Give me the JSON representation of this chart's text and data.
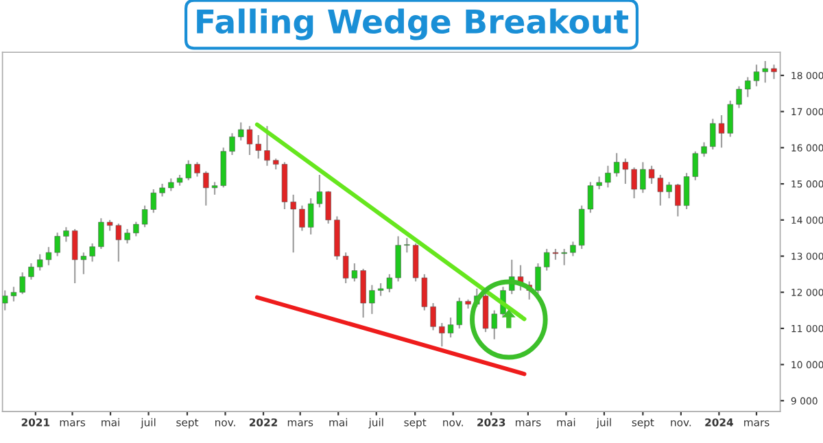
{
  "chart_data": {
    "type": "candlestick",
    "title": "Falling Wedge Breakout",
    "x": [
      "2020-11-13",
      "2020-11-27",
      "2020-12-11",
      "2020-12-25",
      "2021-01-08",
      "2021-01-22",
      "2021-02-05",
      "2021-02-19",
      "2021-03-05",
      "2021-03-19",
      "2021-04-02",
      "2021-04-16",
      "2021-04-30",
      "2021-05-14",
      "2021-05-28",
      "2021-06-11",
      "2021-06-25",
      "2021-07-09",
      "2021-07-23",
      "2021-08-06",
      "2021-08-20",
      "2021-09-03",
      "2021-09-17",
      "2021-10-01",
      "2021-10-15",
      "2021-10-29",
      "2021-11-12",
      "2021-11-26",
      "2021-12-10",
      "2021-12-24",
      "2022-01-07",
      "2022-01-21",
      "2022-02-04",
      "2022-02-18",
      "2022-03-04",
      "2022-03-18",
      "2022-04-01",
      "2022-04-15",
      "2022-04-29",
      "2022-05-13",
      "2022-05-27",
      "2022-06-10",
      "2022-06-24",
      "2022-07-08",
      "2022-07-22",
      "2022-08-05",
      "2022-08-19",
      "2022-09-02",
      "2022-09-16",
      "2022-09-30",
      "2022-10-14",
      "2022-10-28",
      "2022-11-11",
      "2022-11-25",
      "2022-12-09",
      "2022-12-23",
      "2023-01-06",
      "2023-01-20",
      "2023-02-03",
      "2023-02-17",
      "2023-03-03",
      "2023-03-17",
      "2023-03-31",
      "2023-04-14",
      "2023-04-28",
      "2023-05-12",
      "2023-05-26",
      "2023-06-09",
      "2023-06-23",
      "2023-07-07",
      "2023-07-21",
      "2023-08-04",
      "2023-08-18",
      "2023-09-01",
      "2023-09-15",
      "2023-09-29",
      "2023-10-13",
      "2023-10-27",
      "2023-11-10",
      "2023-11-24",
      "2023-12-08",
      "2023-12-22",
      "2024-01-05",
      "2024-01-19",
      "2024-02-02",
      "2024-02-16",
      "2024-03-01",
      "2024-03-15",
      "2024-03-29"
    ],
    "ohlc": [
      [
        11700,
        12050,
        11500,
        11900
      ],
      [
        11900,
        12150,
        11750,
        12000
      ],
      [
        12000,
        12550,
        11950,
        12430
      ],
      [
        12430,
        12800,
        12350,
        12700
      ],
      [
        12700,
        13050,
        12600,
        12900
      ],
      [
        12900,
        13250,
        12750,
        13100
      ],
      [
        13100,
        13650,
        13000,
        13550
      ],
      [
        13550,
        13800,
        13400,
        13700
      ],
      [
        13700,
        13750,
        12250,
        12900
      ],
      [
        12900,
        13100,
        12500,
        13000
      ],
      [
        13000,
        13350,
        12850,
        13260
      ],
      [
        13260,
        14050,
        13200,
        13940
      ],
      [
        13940,
        14000,
        13700,
        13850
      ],
      [
        13850,
        13900,
        12850,
        13450
      ],
      [
        13450,
        13750,
        13350,
        13640
      ],
      [
        13640,
        13950,
        13550,
        13880
      ],
      [
        13880,
        14400,
        13800,
        14290
      ],
      [
        14290,
        14850,
        14200,
        14750
      ],
      [
        14750,
        15000,
        14650,
        14890
      ],
      [
        14890,
        15150,
        14800,
        15040
      ],
      [
        15040,
        15250,
        14950,
        15160
      ],
      [
        15160,
        15650,
        15100,
        15540
      ],
      [
        15540,
        15600,
        15200,
        15300
      ],
      [
        15300,
        15350,
        14400,
        14890
      ],
      [
        14890,
        15050,
        14700,
        14950
      ],
      [
        14950,
        16000,
        14900,
        15900
      ],
      [
        15900,
        16400,
        15800,
        16300
      ],
      [
        16300,
        16700,
        16200,
        16500
      ],
      [
        16500,
        16600,
        15800,
        16100
      ],
      [
        16100,
        16350,
        15700,
        15920
      ],
      [
        15920,
        16600,
        15500,
        15650
      ],
      [
        15650,
        15700,
        15400,
        15540
      ],
      [
        15540,
        15600,
        14300,
        14500
      ],
      [
        14500,
        14700,
        13100,
        14300
      ],
      [
        14300,
        14400,
        13700,
        13800
      ],
      [
        13800,
        14600,
        13600,
        14450
      ],
      [
        14450,
        15250,
        14350,
        14780
      ],
      [
        14780,
        14800,
        13900,
        14000
      ],
      [
        14000,
        14100,
        12900,
        13000
      ],
      [
        13000,
        13100,
        12250,
        12390
      ],
      [
        12390,
        12800,
        12300,
        12600
      ],
      [
        12600,
        12650,
        11300,
        11700
      ],
      [
        11700,
        12200,
        11400,
        12050
      ],
      [
        12050,
        12250,
        11900,
        12100
      ],
      [
        12100,
        12500,
        12000,
        12400
      ],
      [
        12400,
        13550,
        12300,
        13300
      ],
      [
        13300,
        13500,
        13100,
        13300
      ],
      [
        13300,
        13350,
        12300,
        12400
      ],
      [
        12400,
        12500,
        11500,
        11600
      ],
      [
        11600,
        11700,
        10950,
        11050
      ],
      [
        11050,
        11150,
        10500,
        10870
      ],
      [
        10870,
        11300,
        10750,
        11100
      ],
      [
        11100,
        11850,
        11000,
        11750
      ],
      [
        11750,
        11800,
        11550,
        11670
      ],
      [
        11670,
        12100,
        11600,
        11900
      ],
      [
        11900,
        12000,
        10900,
        11000
      ],
      [
        11000,
        11500,
        10700,
        11400
      ],
      [
        11400,
        12150,
        11300,
        12050
      ],
      [
        12050,
        12900,
        11950,
        12430
      ],
      [
        12430,
        12750,
        12050,
        12200
      ],
      [
        12200,
        12300,
        11800,
        12050
      ],
      [
        12050,
        12800,
        11950,
        12700
      ],
      [
        12700,
        13200,
        12600,
        13100
      ],
      [
        13100,
        13200,
        12900,
        13070
      ],
      [
        13070,
        13200,
        12750,
        13100
      ],
      [
        13100,
        13400,
        13000,
        13300
      ],
      [
        13300,
        14400,
        13200,
        14300
      ],
      [
        14300,
        15050,
        14200,
        14950
      ],
      [
        14950,
        15200,
        14850,
        15040
      ],
      [
        15040,
        15500,
        14900,
        15300
      ],
      [
        15300,
        15850,
        15200,
        15600
      ],
      [
        15600,
        15700,
        15000,
        15400
      ],
      [
        15400,
        15450,
        14600,
        14850
      ],
      [
        14850,
        15600,
        14750,
        15400
      ],
      [
        15400,
        15500,
        15000,
        15160
      ],
      [
        15160,
        15250,
        14400,
        14780
      ],
      [
        14780,
        15050,
        14600,
        14970
      ],
      [
        14970,
        15000,
        14100,
        14400
      ],
      [
        14400,
        15300,
        14300,
        15200
      ],
      [
        15200,
        15900,
        15100,
        15840
      ],
      [
        15840,
        16150,
        15750,
        16030
      ],
      [
        16030,
        16800,
        15950,
        16670
      ],
      [
        16670,
        16900,
        16000,
        16400
      ],
      [
        16400,
        17300,
        16300,
        17200
      ],
      [
        17200,
        17700,
        17100,
        17620
      ],
      [
        17620,
        17950,
        17400,
        17850
      ],
      [
        17850,
        18300,
        17700,
        18100
      ],
      [
        18100,
        18400,
        17800,
        18190
      ],
      [
        18190,
        18300,
        17900,
        18100
      ]
    ],
    "colors": [
      "#1ec81e",
      "#1ec81e",
      "#1ec81e",
      "#1ec81e",
      "#1ec81e",
      "#1ec81e",
      "#1ec81e",
      "#1ec81e",
      "#e02424",
      "#1ec81e",
      "#1ec81e",
      "#1ec81e",
      "#e02424",
      "#e02424",
      "#1ec81e",
      "#1ec81e",
      "#1ec81e",
      "#1ec81e",
      "#1ec81e",
      "#1ec81e",
      "#1ec81e",
      "#1ec81e",
      "#e02424",
      "#e02424",
      "#1ec81e",
      "#1ec81e",
      "#1ec81e",
      "#1ec81e",
      "#e02424",
      "#e02424",
      "#e02424",
      "#e02424",
      "#e02424",
      "#e02424",
      "#e02424",
      "#1ec81e",
      "#1ec81e",
      "#e02424",
      "#e02424",
      "#e02424",
      "#1ec81e",
      "#e02424",
      "#1ec81e",
      "#1ec81e",
      "#1ec81e",
      "#1ec81e",
      "#1ec81e",
      "#e02424",
      "#e02424",
      "#e02424",
      "#e02424",
      "#1ec81e",
      "#1ec81e",
      "#e02424",
      "#1ec81e",
      "#e02424",
      "#1ec81e",
      "#1ec81e",
      "#1ec81e",
      "#e02424",
      "#e02424",
      "#1ec81e",
      "#1ec81e",
      "#e02424",
      "#1ec81e",
      "#1ec81e",
      "#1ec81e",
      "#1ec81e",
      "#1ec81e",
      "#1ec81e",
      "#1ec81e",
      "#e02424",
      "#e02424",
      "#1ec81e",
      "#e02424",
      "#e02424",
      "#1ec81e",
      "#e02424",
      "#1ec81e",
      "#1ec81e",
      "#1ec81e",
      "#1ec81e",
      "#e02424",
      "#1ec81e",
      "#1ec81e",
      "#1ec81e",
      "#1ec81e",
      "#1ec81e",
      "#e02424"
    ],
    "series": [
      {
        "type": "line",
        "color": "#66e61e",
        "x": [
          "2021-12-22",
          "2023-02-23"
        ],
        "values": [
          16640,
          11260
        ]
      },
      {
        "type": "line",
        "color": "#ee1c1c",
        "x": [
          "2021-12-22",
          "2023-02-23"
        ],
        "values": [
          11860,
          9740
        ]
      }
    ],
    "xlim": [
      "2020-11-09",
      "2024-04-08"
    ],
    "xticks": [
      {
        "value": "2021-01-01",
        "label": "2021"
      },
      {
        "value": "2021-03-01",
        "label": "mars"
      },
      {
        "value": "2021-05-01",
        "label": "mai"
      },
      {
        "value": "2021-07-01",
        "label": "juil"
      },
      {
        "value": "2021-09-01",
        "label": "sept"
      },
      {
        "value": "2021-11-01",
        "label": "nov."
      },
      {
        "value": "2022-01-01",
        "label": "2022"
      },
      {
        "value": "2022-03-01",
        "label": "mars"
      },
      {
        "value": "2022-05-01",
        "label": "mai"
      },
      {
        "value": "2022-07-01",
        "label": "juil"
      },
      {
        "value": "2022-09-01",
        "label": "sept"
      },
      {
        "value": "2022-11-01",
        "label": "nov."
      },
      {
        "value": "2023-01-01",
        "label": "2023"
      },
      {
        "value": "2023-03-01",
        "label": "mars"
      },
      {
        "value": "2023-05-01",
        "label": "mai"
      },
      {
        "value": "2023-07-01",
        "label": "juil"
      },
      {
        "value": "2023-09-01",
        "label": "sept"
      },
      {
        "value": "2023-11-01",
        "label": "nov."
      },
      {
        "value": "2024-01-01",
        "label": "2024"
      },
      {
        "value": "2024-03-01",
        "label": "mars"
      }
    ],
    "ylim": [
      8700,
      18640
    ],
    "yticks": [
      {
        "value": 9000,
        "label": "9 000"
      },
      {
        "value": 10000,
        "label": "10 000"
      },
      {
        "value": 11000,
        "label": "11 000"
      },
      {
        "value": 12000,
        "label": "12 000"
      },
      {
        "value": 13000,
        "label": "13 000"
      },
      {
        "value": 14000,
        "label": "14 000"
      },
      {
        "value": 15000,
        "label": "15 000"
      },
      {
        "value": 16000,
        "label": "16 000"
      },
      {
        "value": 17000,
        "label": "17 000"
      },
      {
        "value": 18000,
        "label": "18 000"
      }
    ]
  }
}
